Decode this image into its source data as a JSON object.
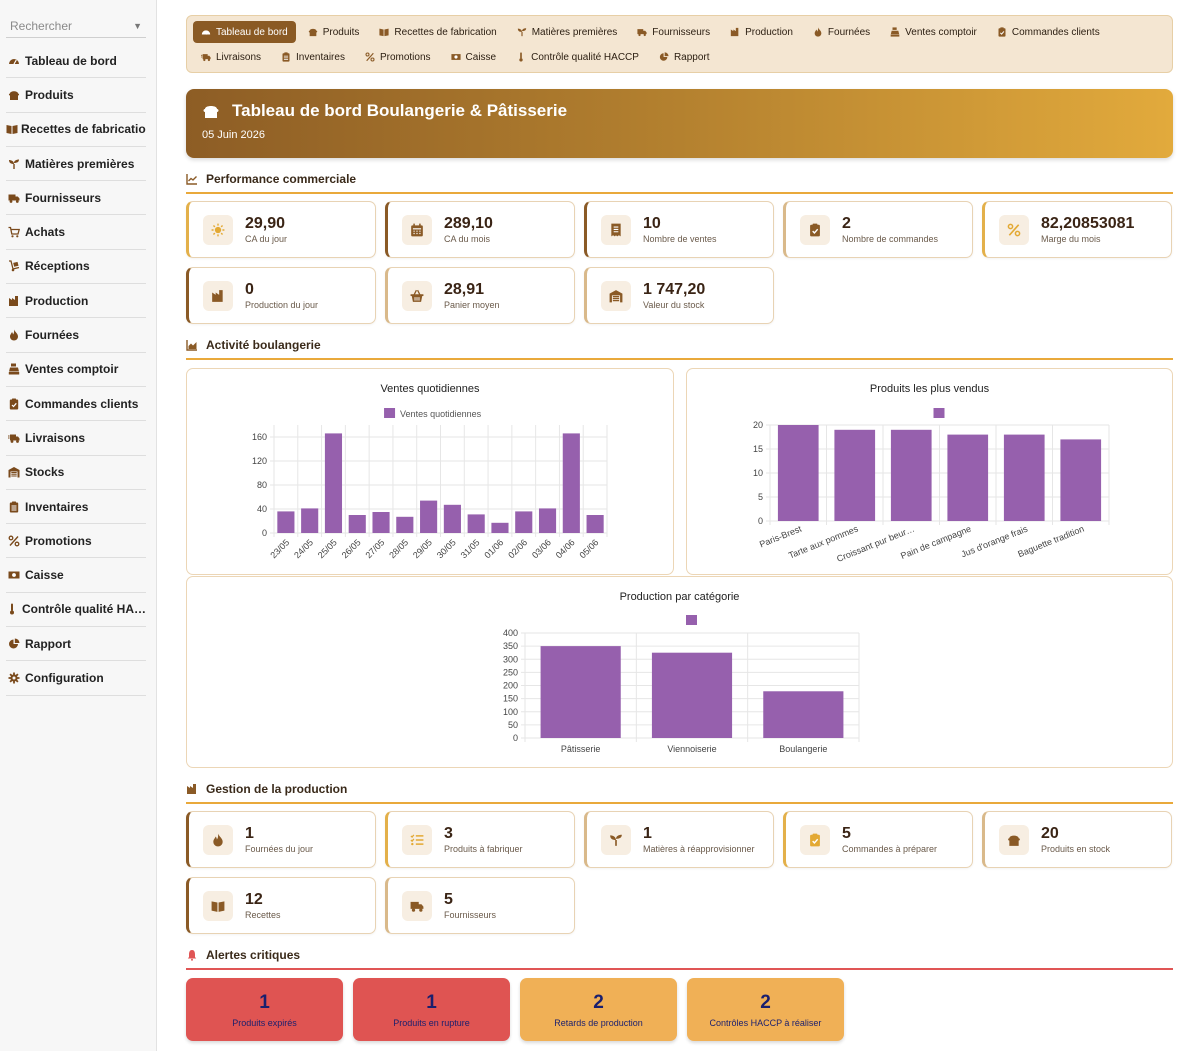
{
  "sidebar": {
    "search_placeholder": "Rechercher",
    "items": [
      {
        "label": "Tableau de bord",
        "icon": "gauge-icon"
      },
      {
        "label": "Produits",
        "icon": "bread-icon"
      },
      {
        "label": "Recettes de fabrication",
        "icon": "book-icon"
      },
      {
        "label": "Matières premières",
        "icon": "seedling-icon"
      },
      {
        "label": "Fournisseurs",
        "icon": "truck-icon"
      },
      {
        "label": "Achats",
        "icon": "cart-icon"
      },
      {
        "label": "Réceptions",
        "icon": "dolly-icon"
      },
      {
        "label": "Production",
        "icon": "industry-icon"
      },
      {
        "label": "Fournées",
        "icon": "fire-icon"
      },
      {
        "label": "Ventes comptoir",
        "icon": "cash-register-icon"
      },
      {
        "label": "Commandes clients",
        "icon": "clipboard-check-icon"
      },
      {
        "label": "Livraisons",
        "icon": "truck-fast-icon"
      },
      {
        "label": "Stocks",
        "icon": "warehouse-icon"
      },
      {
        "label": "Inventaires",
        "icon": "clipboard-list-icon"
      },
      {
        "label": "Promotions",
        "icon": "percent-icon"
      },
      {
        "label": "Caisse",
        "icon": "money-bill-icon"
      },
      {
        "label": "Contrôle qualité HA…",
        "icon": "thermometer-icon"
      },
      {
        "label": "Rapport",
        "icon": "chart-pie-icon"
      },
      {
        "label": "Configuration",
        "icon": "gear-icon"
      }
    ]
  },
  "tabs": [
    {
      "label": "Tableau de bord",
      "icon": "gauge-icon",
      "active": true
    },
    {
      "label": "Produits",
      "icon": "bread-icon"
    },
    {
      "label": "Recettes de fabrication",
      "icon": "book-icon"
    },
    {
      "label": "Matières premières",
      "icon": "seedling-icon"
    },
    {
      "label": "Fournisseurs",
      "icon": "truck-icon"
    },
    {
      "label": "Production",
      "icon": "industry-icon"
    },
    {
      "label": "Fournées",
      "icon": "fire-icon"
    },
    {
      "label": "Ventes comptoir",
      "icon": "cash-register-icon"
    },
    {
      "label": "Commandes clients",
      "icon": "clipboard-check-icon"
    },
    {
      "label": "Livraisons",
      "icon": "truck-fast-icon"
    },
    {
      "label": "Inventaires",
      "icon": "clipboard-list-icon"
    },
    {
      "label": "Promotions",
      "icon": "percent-icon"
    },
    {
      "label": "Caisse",
      "icon": "money-bill-icon"
    },
    {
      "label": "Contrôle qualité HACCP",
      "icon": "thermometer-icon"
    },
    {
      "label": "Rapport",
      "icon": "chart-pie-icon"
    }
  ],
  "hero": {
    "title": "Tableau de bord Boulangerie & Pâtisserie",
    "date": "05 Juin 2026",
    "icon": "bread-icon"
  },
  "sections": {
    "performance": "Performance commerciale",
    "activity": "Activité boulangerie",
    "production": "Gestion de la production",
    "alerts": "Alertes critiques"
  },
  "performance_cards": [
    {
      "value": "29,90",
      "label": "CA du jour",
      "icon": "sun-icon",
      "accent": "gold"
    },
    {
      "value": "289,10",
      "label": "CA du mois",
      "icon": "calendar-icon",
      "accent": "brown"
    },
    {
      "value": "10",
      "label": "Nombre de ventes",
      "icon": "receipt-icon",
      "accent": "brown"
    },
    {
      "value": "2",
      "label": "Nombre de commandes",
      "icon": "clipboard-check-icon",
      "accent": "sand"
    },
    {
      "value": "82,20853081",
      "label": "Marge du mois",
      "icon": "percent-icon",
      "accent": "gold"
    },
    {
      "value": "0",
      "label": "Production du jour",
      "icon": "industry-icon",
      "accent": "brown"
    },
    {
      "value": "28,91",
      "label": "Panier moyen",
      "icon": "basket-icon",
      "accent": "sand"
    },
    {
      "value": "1 747,20",
      "label": "Valeur du stock",
      "icon": "warehouse-icon",
      "accent": "sand"
    }
  ],
  "production_cards": [
    {
      "value": "1",
      "label": "Fournées du jour",
      "icon": "fire-icon",
      "accent": "brown"
    },
    {
      "value": "3",
      "label": "Produits à fabriquer",
      "icon": "list-check-icon",
      "accent": "gold"
    },
    {
      "value": "1",
      "label": "Matières à réapprovisionner",
      "icon": "seedling-icon",
      "accent": "sand"
    },
    {
      "value": "5",
      "label": "Commandes à préparer",
      "icon": "clipboard-check-icon",
      "accent": "gold"
    },
    {
      "value": "20",
      "label": "Produits en stock",
      "icon": "bread-icon",
      "accent": "sand"
    },
    {
      "value": "12",
      "label": "Recettes",
      "icon": "book-icon",
      "accent": "brown"
    },
    {
      "value": "5",
      "label": "Fournisseurs",
      "icon": "truck-icon",
      "accent": "sand"
    }
  ],
  "alerts": [
    {
      "value": "1",
      "label": "Produits expirés",
      "color": "#df5452"
    },
    {
      "value": "1",
      "label": "Produits en rupture",
      "color": "#df5452"
    },
    {
      "value": "2",
      "label": "Retards de production",
      "color": "#f0b056"
    },
    {
      "value": "2",
      "label": "Contrôles HACCP à réaliser",
      "color": "#f0b056"
    }
  ],
  "colors": {
    "bar": "#9660ad",
    "accent": "#e9a93b",
    "brown": "#8a5a26"
  },
  "chart_data": [
    {
      "type": "bar",
      "title": "Ventes quotidiennes",
      "categories": [
        "23/05",
        "24/05",
        "25/05",
        "26/05",
        "27/05",
        "28/05",
        "29/05",
        "30/05",
        "31/05",
        "01/06",
        "02/06",
        "03/06",
        "04/06",
        "05/06"
      ],
      "series": [
        {
          "name": "Ventes quotidiennes",
          "values": [
            36,
            41,
            166,
            30,
            35,
            27,
            54,
            47,
            31,
            17,
            36,
            41,
            166,
            30
          ]
        }
      ],
      "yticks": [
        "0",
        "40",
        "80",
        "120",
        "160"
      ],
      "ylim": [
        0,
        180
      ],
      "legend": "top",
      "grid": true
    },
    {
      "type": "bar",
      "title": "Produits les plus vendus",
      "categories": [
        "Paris-Brest",
        "Tarte aux pommes",
        "Croissant pur beur…",
        "Pain de campagne",
        "Jus d'orange frais",
        "Baguette tradition"
      ],
      "series": [
        {
          "values": [
            20,
            19,
            19,
            18,
            18,
            17
          ]
        }
      ],
      "yticks": [
        "0",
        "5",
        "10",
        "15",
        "20"
      ],
      "ylim": [
        0,
        20
      ],
      "legend": "top",
      "grid": true
    },
    {
      "type": "bar",
      "title": "Production par catégorie",
      "categories": [
        "Pâtisserie",
        "Viennoiserie",
        "Boulangerie"
      ],
      "series": [
        {
          "values": [
            350,
            325,
            178
          ]
        }
      ],
      "yticks": [
        "0",
        "50",
        "100",
        "150",
        "200",
        "250",
        "300",
        "350",
        "400"
      ],
      "ylim": [
        0,
        400
      ],
      "legend": "top",
      "grid": true
    }
  ]
}
